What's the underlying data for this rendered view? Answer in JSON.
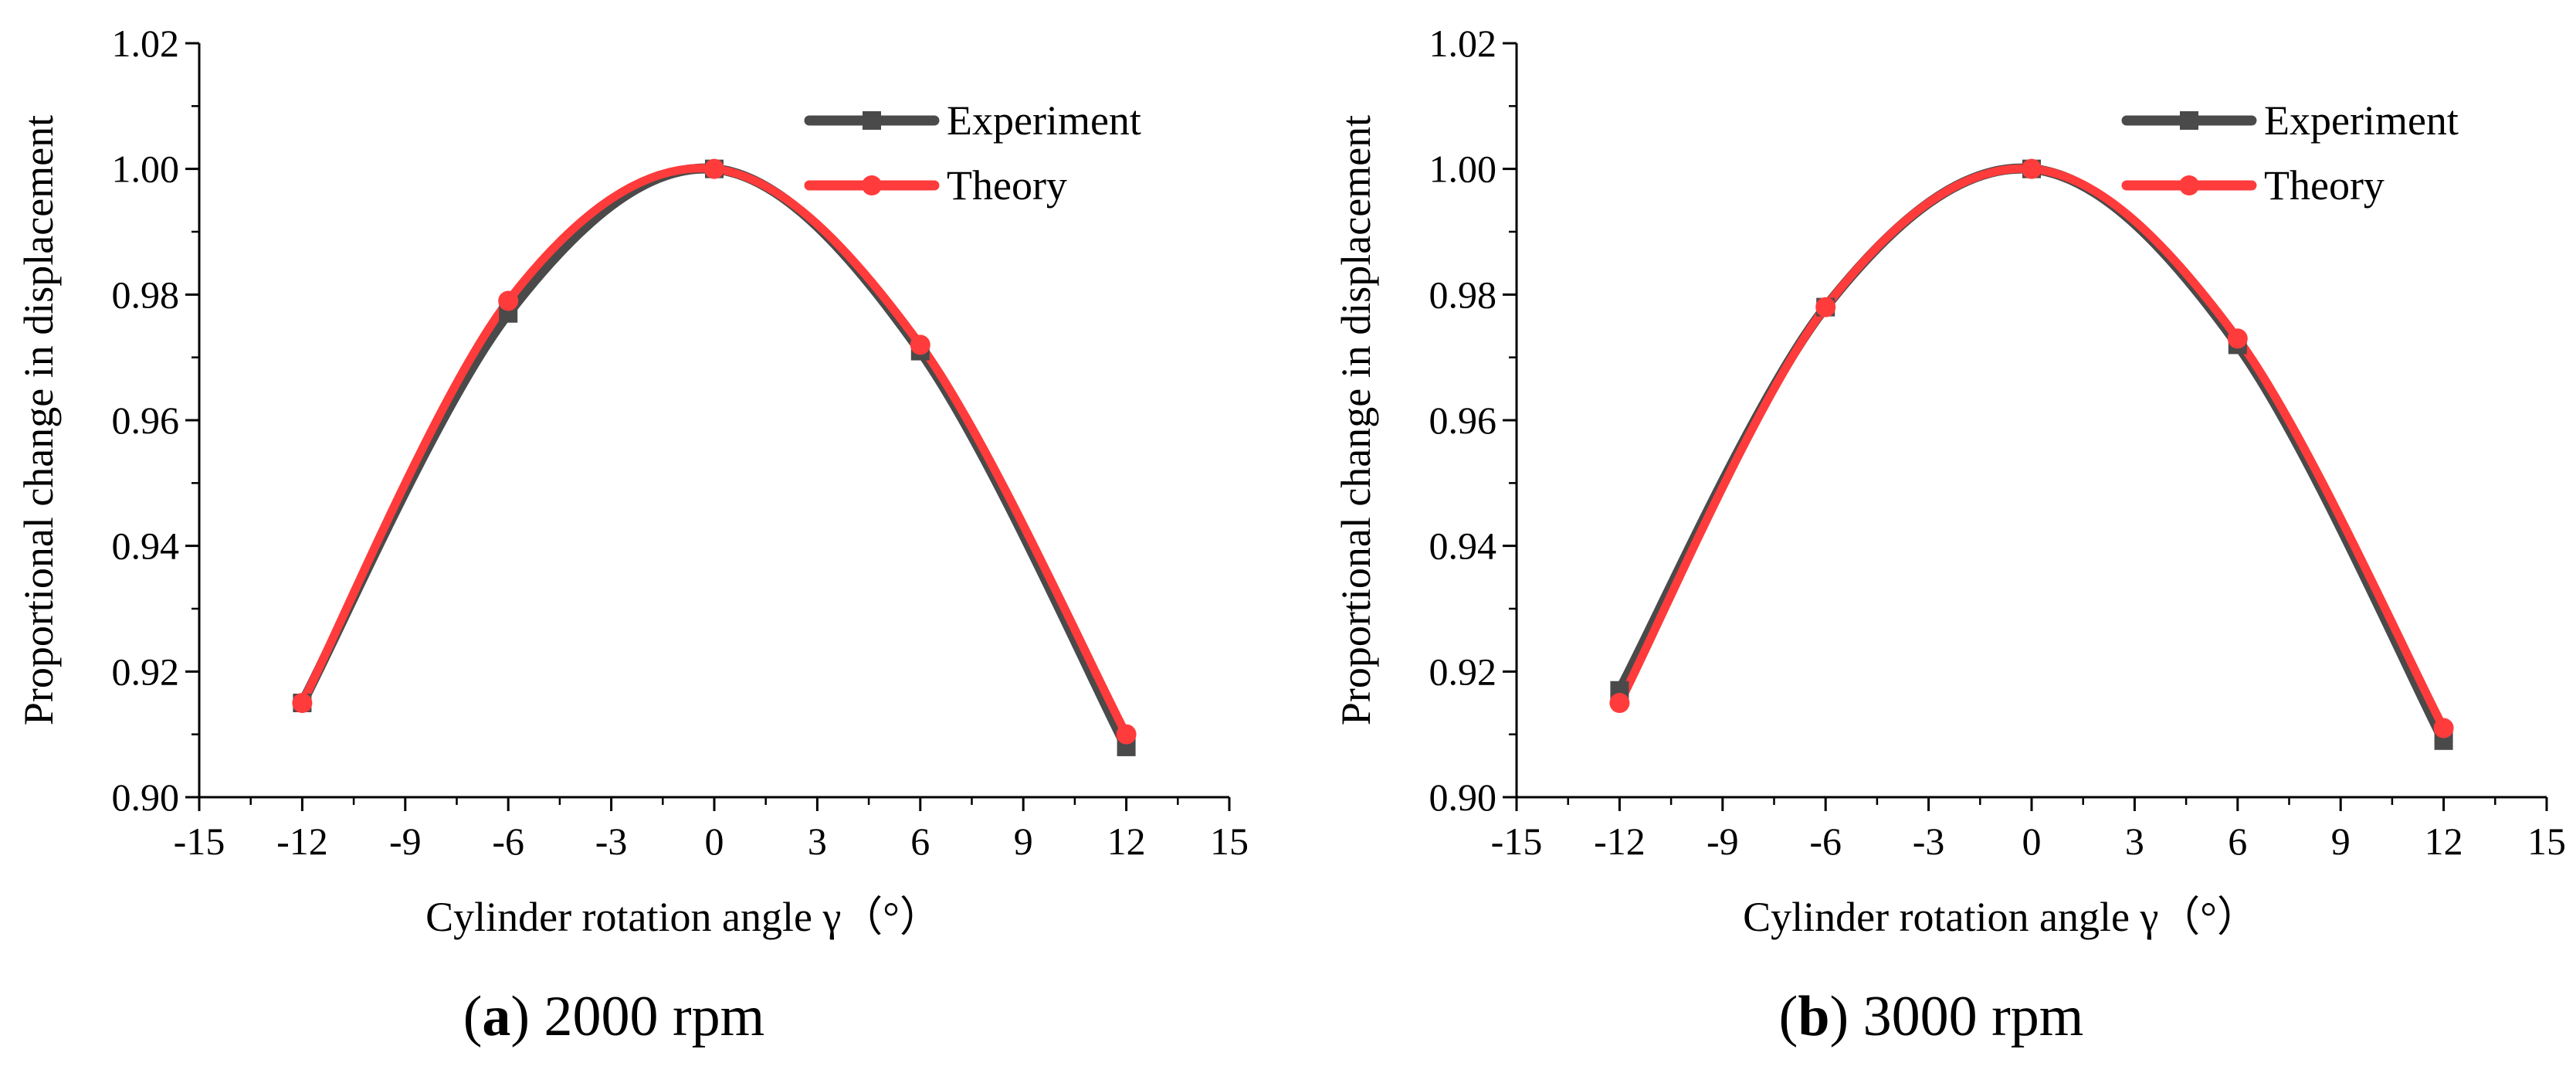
{
  "colors": {
    "experiment": "#4a4a4a",
    "theory": "#ff3b3b",
    "axis": "#000000"
  },
  "chart_data": [
    {
      "type": "line",
      "caption_letter": "a",
      "caption_rest": ") 2000 rpm",
      "caption_open": "(",
      "xlabel": "Cylinder rotation angle γ（°）",
      "ylabel": "Proportional change in displacement",
      "xlim": [
        -15,
        15
      ],
      "ylim": [
        0.9,
        1.02
      ],
      "xticks": [
        -15,
        -12,
        -9,
        -6,
        -3,
        0,
        3,
        6,
        9,
        12,
        15
      ],
      "xtick_labels": [
        "-15",
        "-12",
        "-9",
        "-6",
        "-3",
        "0",
        "3",
        "6",
        "9",
        "12",
        "15"
      ],
      "yticks": [
        0.9,
        0.92,
        0.94,
        0.96,
        0.98,
        1.0,
        1.02
      ],
      "ytick_labels": [
        "0.90",
        "0.92",
        "0.94",
        "0.96",
        "0.98",
        "1.00",
        "1.02"
      ],
      "legend_position": "top-right",
      "x": [
        -12,
        -6,
        0,
        6,
        12
      ],
      "series": [
        {
          "name": "Experiment",
          "marker": "square",
          "color": "#4a4a4a",
          "values": [
            0.915,
            0.977,
            1.0,
            0.971,
            0.908
          ]
        },
        {
          "name": "Theory",
          "marker": "circle",
          "color": "#ff3b3b",
          "values": [
            0.915,
            0.979,
            1.0,
            0.972,
            0.91
          ]
        }
      ]
    },
    {
      "type": "line",
      "caption_letter": "b",
      "caption_rest": ") 3000 rpm",
      "caption_open": "(",
      "xlabel": "Cylinder rotation angle γ（°）",
      "ylabel": "Proportional change in displacement",
      "xlim": [
        -15,
        15
      ],
      "ylim": [
        0.9,
        1.02
      ],
      "xticks": [
        -15,
        -12,
        -9,
        -6,
        -3,
        0,
        3,
        6,
        9,
        12,
        15
      ],
      "xtick_labels": [
        "-15",
        "-12",
        "-9",
        "-6",
        "-3",
        "0",
        "3",
        "6",
        "9",
        "12",
        "15"
      ],
      "yticks": [
        0.9,
        0.92,
        0.94,
        0.96,
        0.98,
        1.0,
        1.02
      ],
      "ytick_labels": [
        "0.90",
        "0.92",
        "0.94",
        "0.96",
        "0.98",
        "1.00",
        "1.02"
      ],
      "legend_position": "top-right",
      "x": [
        -12,
        -6,
        0,
        6,
        12
      ],
      "series": [
        {
          "name": "Experiment",
          "marker": "square",
          "color": "#4a4a4a",
          "values": [
            0.917,
            0.978,
            1.0,
            0.972,
            0.909
          ]
        },
        {
          "name": "Theory",
          "marker": "circle",
          "color": "#ff3b3b",
          "values": [
            0.915,
            0.978,
            1.0,
            0.973,
            0.911
          ]
        }
      ]
    }
  ]
}
